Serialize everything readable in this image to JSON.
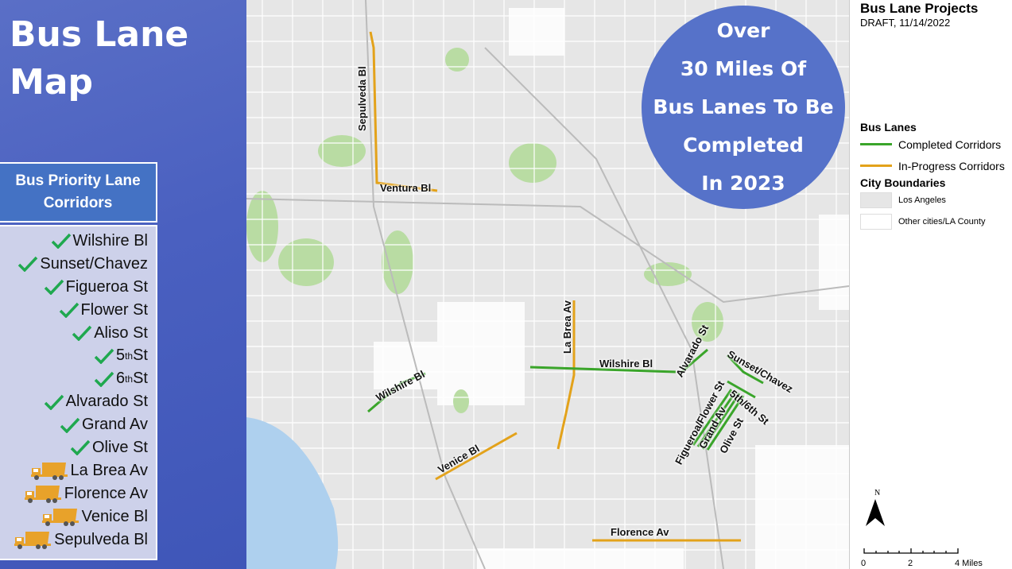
{
  "title": "Bus Lane Map",
  "corridors_heading": "Bus Priority Lane Corridors",
  "corridors": [
    {
      "name": "Wilshire Bl",
      "status": "completed",
      "icon": "check-icon"
    },
    {
      "name": "Sunset/Chavez",
      "status": "completed",
      "icon": "check-icon"
    },
    {
      "name": "Figueroa St",
      "status": "completed",
      "icon": "check-icon"
    },
    {
      "name": "Flower St",
      "status": "completed",
      "icon": "check-icon"
    },
    {
      "name": "Aliso St",
      "status": "completed",
      "icon": "check-icon"
    },
    {
      "name": "5",
      "sup": "th",
      "suffix": " St",
      "status": "completed",
      "icon": "check-icon"
    },
    {
      "name": "6",
      "sup": "th",
      "suffix": " St",
      "status": "completed",
      "icon": "check-icon"
    },
    {
      "name": "Alvarado St",
      "status": "completed",
      "icon": "check-icon"
    },
    {
      "name": "Grand Av",
      "status": "completed",
      "icon": "check-icon"
    },
    {
      "name": "Olive St",
      "status": "completed",
      "icon": "check-icon"
    },
    {
      "name": "La Brea Av",
      "status": "in-progress",
      "icon": "dump-truck-icon"
    },
    {
      "name": "Florence Av",
      "status": "in-progress",
      "icon": "dump-truck-icon"
    },
    {
      "name": "Venice Bl",
      "status": "in-progress",
      "icon": "dump-truck-icon"
    },
    {
      "name": "Sepulveda Bl",
      "status": "in-progress",
      "icon": "dump-truck-icon"
    }
  ],
  "callout": [
    "Over",
    "30 Miles Of",
    "Bus Lanes To Be",
    "Completed",
    "In 2023"
  ],
  "map_labels": {
    "sepulveda": "Sepulveda Bl",
    "ventura": "Ventura Bl",
    "la_brea": "La Brea Av",
    "wilshire": "Wilshire Bl",
    "wilshire_west": "Wilshire Bl",
    "alvarado": "Alvarado St",
    "sunset": "Sunset/Chavez",
    "fig_flower": "Figueroa/Flower St",
    "grand": "Grand Av",
    "olive": "Olive St",
    "fifth_sixth": "5th/6th St",
    "venice": "Venice Bl",
    "florence": "Florence Av"
  },
  "legend": {
    "title": "Bus Lane Projects",
    "draft": "DRAFT, 11/14/2022",
    "bus_lanes_heading": "Bus Lanes",
    "completed": "Completed Corridors",
    "in_progress": "In-Progress Corridors",
    "city_heading": "City Boundaries",
    "la": "Los Angeles",
    "other": "Other cities/LA County",
    "north": "N",
    "scale": [
      "0",
      "2",
      "4 Miles"
    ]
  },
  "colors": {
    "completed": "#3aa52a",
    "in_progress": "#e3a21a",
    "check": "#1fa84f",
    "truck": "#e8a22a",
    "panel": "#4a60c0",
    "callout": "#5672c9",
    "la_fill": "#e6e6e6"
  }
}
